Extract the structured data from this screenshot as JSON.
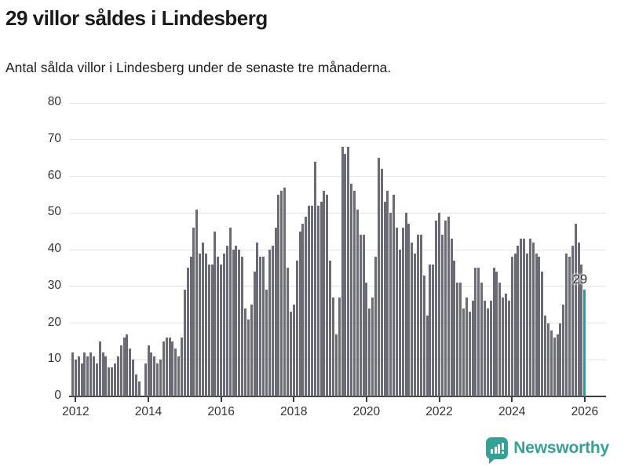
{
  "header": {
    "title": "29 villor såldes i Lindesberg",
    "subtitle": "Antal sålda villor i Lindesberg under de senaste tre månaderna."
  },
  "chart_data": {
    "type": "bar",
    "title": "29 villor såldes i Lindesberg",
    "xlabel": "",
    "ylabel": "",
    "ylim": [
      0,
      80
    ],
    "y_ticks": [
      0,
      10,
      20,
      30,
      40,
      50,
      60,
      70,
      80
    ],
    "x_tick_labels": [
      "2012",
      "2014",
      "2016",
      "2018",
      "2020",
      "2022",
      "2024",
      "2026"
    ],
    "grid": "horizontal",
    "legend": "none",
    "start_month": "2011-12",
    "months_per_bar": 1,
    "values": [
      12,
      10,
      11,
      9,
      12,
      11,
      12,
      11,
      9,
      15,
      12,
      11,
      8,
      8,
      9,
      11,
      14,
      16,
      17,
      13,
      10,
      6,
      4,
      0,
      9,
      14,
      12,
      11,
      9,
      10,
      15,
      16,
      16,
      15,
      13,
      11,
      16,
      29,
      35,
      38,
      46,
      51,
      39,
      42,
      39,
      36,
      36,
      45,
      38,
      36,
      39,
      41,
      46,
      40,
      41,
      40,
      38,
      24,
      21,
      25,
      34,
      42,
      38,
      38,
      29,
      40,
      41,
      46,
      55,
      56,
      57,
      35,
      23,
      25,
      37,
      45,
      47,
      49,
      52,
      52,
      64,
      52,
      53,
      56,
      55,
      37,
      27,
      17,
      27,
      68,
      66,
      68,
      58,
      56,
      51,
      44,
      44,
      31,
      24,
      27,
      38,
      65,
      62,
      53,
      56,
      50,
      55,
      46,
      40,
      46,
      50,
      47,
      42,
      39,
      44,
      44,
      33,
      22,
      36,
      36,
      48,
      50,
      44,
      48,
      49,
      43,
      37,
      31,
      31,
      24,
      27,
      23,
      26,
      35,
      35,
      31,
      26,
      24,
      26,
      35,
      34,
      31,
      27,
      28,
      26,
      38,
      39,
      41,
      43,
      43,
      39,
      43,
      42,
      39,
      38,
      34,
      22,
      20,
      18,
      16,
      17,
      20,
      25,
      39,
      38,
      41,
      47,
      42,
      36,
      29
    ],
    "highlight_last": true,
    "highlight_label": "29",
    "bar_color": "#6b6b75",
    "highlight_color": "#18a2a2"
  },
  "footer": {
    "logo_text": "Newsworthy",
    "logo_color": "#35a096"
  }
}
